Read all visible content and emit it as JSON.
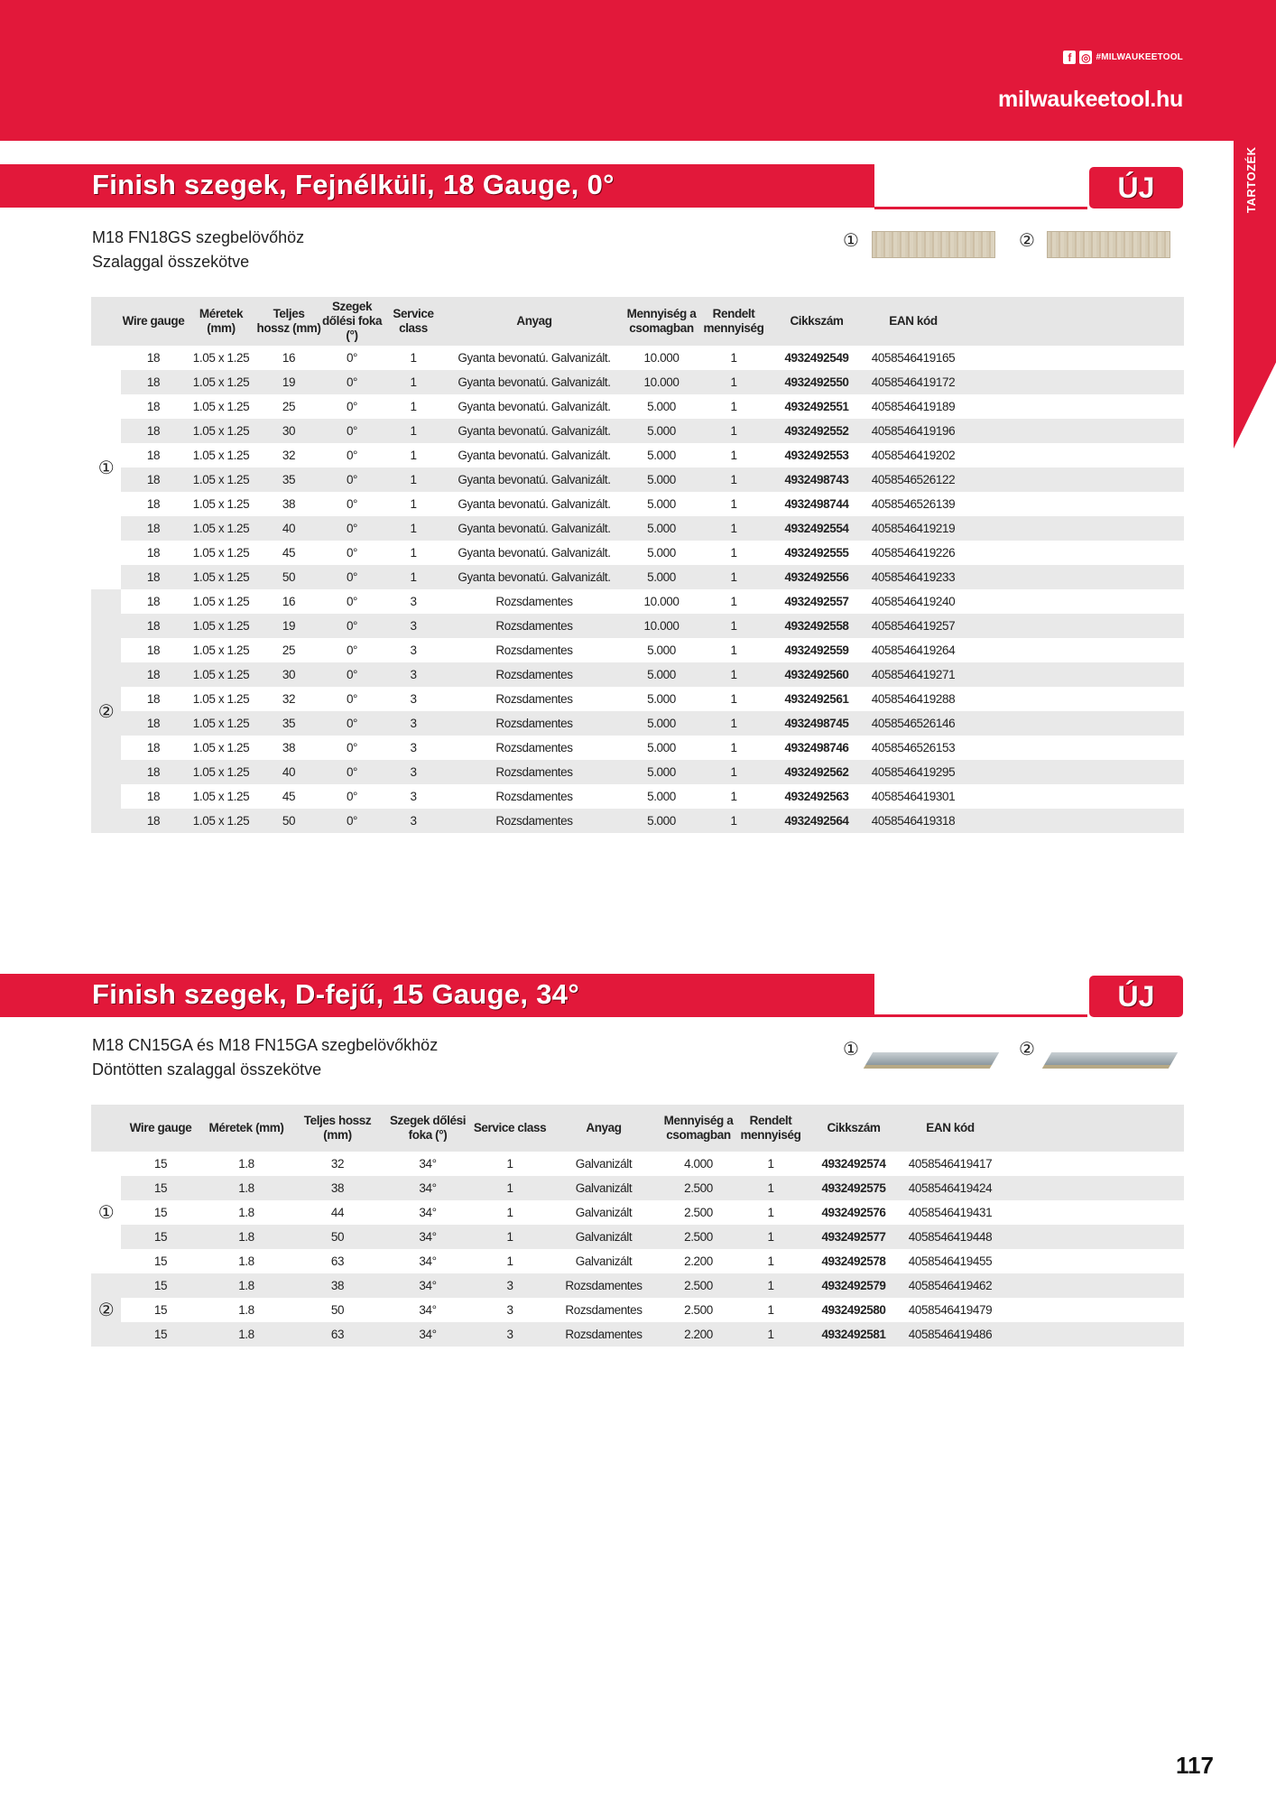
{
  "header": {
    "social_tag": "#MILWAUKEETOOL",
    "facebook_icon": "facebook-icon",
    "instagram_icon": "instagram-icon",
    "website": "milwaukeetool.hu",
    "side_tab": "TARTOZÉK",
    "brand_color": "#e2183a"
  },
  "sections": [
    {
      "title": "Finish szegek, Fejnélküli, 18 Gauge, 0°",
      "badge": "ÚJ",
      "subtitle_1": "M18 FN18GS szegbelövőhöz",
      "subtitle_2": "Szalaggal összekötve",
      "image_labels": [
        "①",
        "②"
      ],
      "columns": [
        "Wire gauge",
        "Méretek (mm)",
        "Teljes hossz (mm)",
        "Szegek dőlési foka (°)",
        "Service class",
        "Anyag",
        "Mennyiség a csomagban",
        "Rendelt mennyiség",
        "Cikkszám",
        "EAN kód"
      ],
      "groups": [
        {
          "label": "①",
          "rows": [
            [
              "18",
              "1.05 x 1.25",
              "16",
              "0°",
              "1",
              "Gyanta bevonatú. Galvanizált.",
              "10.000",
              "1",
              "4932492549",
              "4058546419165"
            ],
            [
              "18",
              "1.05 x 1.25",
              "19",
              "0°",
              "1",
              "Gyanta bevonatú. Galvanizált.",
              "10.000",
              "1",
              "4932492550",
              "4058546419172"
            ],
            [
              "18",
              "1.05 x 1.25",
              "25",
              "0°",
              "1",
              "Gyanta bevonatú. Galvanizált.",
              "5.000",
              "1",
              "4932492551",
              "4058546419189"
            ],
            [
              "18",
              "1.05 x 1.25",
              "30",
              "0°",
              "1",
              "Gyanta bevonatú. Galvanizált.",
              "5.000",
              "1",
              "4932492552",
              "4058546419196"
            ],
            [
              "18",
              "1.05 x 1.25",
              "32",
              "0°",
              "1",
              "Gyanta bevonatú. Galvanizált.",
              "5.000",
              "1",
              "4932492553",
              "4058546419202"
            ],
            [
              "18",
              "1.05 x 1.25",
              "35",
              "0°",
              "1",
              "Gyanta bevonatú. Galvanizált.",
              "5.000",
              "1",
              "4932498743",
              "4058546526122"
            ],
            [
              "18",
              "1.05 x 1.25",
              "38",
              "0°",
              "1",
              "Gyanta bevonatú. Galvanizált.",
              "5.000",
              "1",
              "4932498744",
              "4058546526139"
            ],
            [
              "18",
              "1.05 x 1.25",
              "40",
              "0°",
              "1",
              "Gyanta bevonatú. Galvanizált.",
              "5.000",
              "1",
              "4932492554",
              "4058546419219"
            ],
            [
              "18",
              "1.05 x 1.25",
              "45",
              "0°",
              "1",
              "Gyanta bevonatú. Galvanizált.",
              "5.000",
              "1",
              "4932492555",
              "4058546419226"
            ],
            [
              "18",
              "1.05 x 1.25",
              "50",
              "0°",
              "1",
              "Gyanta bevonatú. Galvanizált.",
              "5.000",
              "1",
              "4932492556",
              "4058546419233"
            ]
          ]
        },
        {
          "label": "②",
          "rows": [
            [
              "18",
              "1.05 x 1.25",
              "16",
              "0°",
              "3",
              "Rozsdamentes",
              "10.000",
              "1",
              "4932492557",
              "4058546419240"
            ],
            [
              "18",
              "1.05 x 1.25",
              "19",
              "0°",
              "3",
              "Rozsdamentes",
              "10.000",
              "1",
              "4932492558",
              "4058546419257"
            ],
            [
              "18",
              "1.05 x 1.25",
              "25",
              "0°",
              "3",
              "Rozsdamentes",
              "5.000",
              "1",
              "4932492559",
              "4058546419264"
            ],
            [
              "18",
              "1.05 x 1.25",
              "30",
              "0°",
              "3",
              "Rozsdamentes",
              "5.000",
              "1",
              "4932492560",
              "4058546419271"
            ],
            [
              "18",
              "1.05 x 1.25",
              "32",
              "0°",
              "3",
              "Rozsdamentes",
              "5.000",
              "1",
              "4932492561",
              "4058546419288"
            ],
            [
              "18",
              "1.05 x 1.25",
              "35",
              "0°",
              "3",
              "Rozsdamentes",
              "5.000",
              "1",
              "4932498745",
              "4058546526146"
            ],
            [
              "18",
              "1.05 x 1.25",
              "38",
              "0°",
              "3",
              "Rozsdamentes",
              "5.000",
              "1",
              "4932498746",
              "4058546526153"
            ],
            [
              "18",
              "1.05 x 1.25",
              "40",
              "0°",
              "3",
              "Rozsdamentes",
              "5.000",
              "1",
              "4932492562",
              "4058546419295"
            ],
            [
              "18",
              "1.05 x 1.25",
              "45",
              "0°",
              "3",
              "Rozsdamentes",
              "5.000",
              "1",
              "4932492563",
              "4058546419301"
            ],
            [
              "18",
              "1.05 x 1.25",
              "50",
              "0°",
              "3",
              "Rozsdamentes",
              "5.000",
              "1",
              "4932492564",
              "4058546419318"
            ]
          ]
        }
      ]
    },
    {
      "title": "Finish szegek, D-fejű, 15 Gauge, 34°",
      "badge": "ÚJ",
      "subtitle_1": "M18 CN15GA és M18 FN15GA szegbelövőkhöz",
      "subtitle_2": "Döntötten szalaggal összekötve",
      "image_labels": [
        "①",
        "②"
      ],
      "columns": [
        "Wire gauge",
        "Méretek (mm)",
        "Teljes hossz (mm)",
        "Szegek dőlési foka (°)",
        "Service class",
        "Anyag",
        "Mennyiség a csomagban",
        "Rendelt mennyiség",
        "Cikkszám",
        "EAN kód"
      ],
      "groups": [
        {
          "label": "①",
          "rows": [
            [
              "15",
              "1.8",
              "32",
              "34°",
              "1",
              "Galvanizált",
              "4.000",
              "1",
              "4932492574",
              "4058546419417"
            ],
            [
              "15",
              "1.8",
              "38",
              "34°",
              "1",
              "Galvanizált",
              "2.500",
              "1",
              "4932492575",
              "4058546419424"
            ],
            [
              "15",
              "1.8",
              "44",
              "34°",
              "1",
              "Galvanizált",
              "2.500",
              "1",
              "4932492576",
              "4058546419431"
            ],
            [
              "15",
              "1.8",
              "50",
              "34°",
              "1",
              "Galvanizált",
              "2.500",
              "1",
              "4932492577",
              "4058546419448"
            ],
            [
              "15",
              "1.8",
              "63",
              "34°",
              "1",
              "Galvanizált",
              "2.200",
              "1",
              "4932492578",
              "4058546419455"
            ]
          ]
        },
        {
          "label": "②",
          "rows": [
            [
              "15",
              "1.8",
              "38",
              "34°",
              "3",
              "Rozsdamentes",
              "2.500",
              "1",
              "4932492579",
              "4058546419462"
            ],
            [
              "15",
              "1.8",
              "50",
              "34°",
              "3",
              "Rozsdamentes",
              "2.500",
              "1",
              "4932492580",
              "4058546419479"
            ],
            [
              "15",
              "1.8",
              "63",
              "34°",
              "3",
              "Rozsdamentes",
              "2.200",
              "1",
              "4932492581",
              "4058546419486"
            ]
          ]
        }
      ]
    }
  ],
  "page_number": "117"
}
